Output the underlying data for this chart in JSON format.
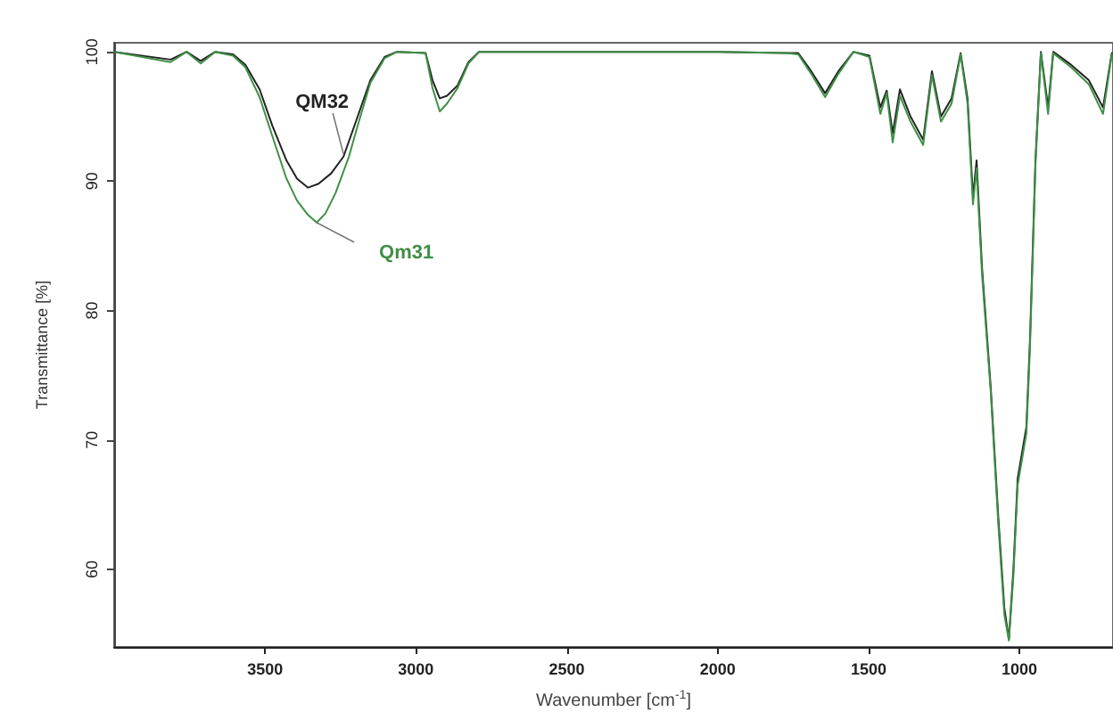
{
  "chart_data": {
    "type": "line",
    "xlabel": "Wavenumber [cm$^{-1}$]",
    "ylabel": "Transmittance [%]",
    "xlim": [
      4000,
      690
    ],
    "xticks": [
      3500,
      3000,
      2500,
      2000,
      1500,
      1000
    ],
    "ylim": [
      54,
      100.7
    ],
    "yticks": [
      60,
      70,
      80,
      90,
      100
    ],
    "grid": false,
    "marker": "none",
    "line_style": "solid",
    "annotations": [
      {
        "text": "QM32",
        "x": 3240,
        "y": 92.1
      },
      {
        "text": "Qm31",
        "x": 3329,
        "y": 86.8
      }
    ],
    "series": [
      {
        "color": "#222222",
        "x": [
          4000,
          3813,
          3760,
          3713,
          3665,
          3606,
          3565,
          3518,
          3476,
          3429,
          3394,
          3358,
          3323,
          3281,
          3240,
          3193,
          3151,
          3104,
          3063,
          2968,
          2945,
          2921,
          2897,
          2862,
          2826,
          2791,
          2000,
          1774,
          1733,
          1690,
          1644,
          1600,
          1550,
          1497,
          1461,
          1440,
          1420,
          1396,
          1361,
          1319,
          1290,
          1260,
          1225,
          1195,
          1172,
          1154,
          1142,
          1136,
          1124,
          1095,
          1070,
          1050,
          1035,
          1020,
          1006,
          977,
          965,
          947,
          929,
          905,
          888,
          829,
          770,
          723,
          694
        ],
        "values": [
          100,
          99.4,
          100,
          99.3,
          100,
          99.8,
          99,
          97.1,
          94.3,
          91.6,
          90.2,
          89.5,
          89.8,
          90.6,
          91.9,
          95,
          97.8,
          99.6,
          100,
          99.9,
          97.8,
          96.4,
          96.6,
          97.4,
          99.2,
          100,
          100,
          99.9,
          99.9,
          98.5,
          96.8,
          98.5,
          100,
          99.7,
          95.7,
          97,
          93.7,
          97.1,
          95,
          93.2,
          98.5,
          95,
          96.4,
          99.9,
          96.4,
          88.8,
          91.6,
          88.8,
          83.3,
          74,
          64,
          57,
          54.6,
          60,
          67,
          71,
          77.8,
          91.6,
          100,
          95.7,
          100,
          99,
          97.8,
          95.7,
          99.9
        ]
      },
      {
        "color": "#3f8f46",
        "x": [
          4000,
          3813,
          3760,
          3713,
          3665,
          3606,
          3565,
          3518,
          3476,
          3429,
          3394,
          3358,
          3329,
          3300,
          3266,
          3222,
          3193,
          3151,
          3104,
          3063,
          2968,
          2945,
          2921,
          2897,
          2862,
          2826,
          2791,
          2000,
          1774,
          1733,
          1690,
          1644,
          1600,
          1550,
          1497,
          1461,
          1440,
          1420,
          1396,
          1361,
          1319,
          1290,
          1260,
          1225,
          1195,
          1172,
          1154,
          1142,
          1136,
          1124,
          1095,
          1070,
          1050,
          1035,
          1020,
          1006,
          977,
          965,
          947,
          929,
          905,
          888,
          829,
          770,
          723,
          694
        ],
        "values": [
          100,
          99.2,
          100,
          99.1,
          100,
          99.7,
          98.8,
          96.5,
          93.5,
          90.2,
          88.5,
          87.4,
          86.8,
          87.5,
          89.1,
          91.9,
          94.3,
          97.6,
          99.5,
          100,
          99.9,
          97.2,
          95.4,
          96,
          97.2,
          99.1,
          100,
          100,
          99.9,
          99.8,
          98.3,
          96.5,
          98.3,
          100,
          99.6,
          95.2,
          96.8,
          93,
          96.6,
          94.6,
          92.8,
          98.2,
          94.6,
          96,
          99.8,
          96,
          88.2,
          91,
          88.2,
          82.8,
          73.7,
          63.5,
          56.5,
          54.5,
          59.5,
          66.5,
          70.5,
          77.2,
          91.2,
          99.9,
          95.2,
          99.9,
          98.8,
          97.5,
          95.2,
          99.8
        ]
      }
    ]
  }
}
